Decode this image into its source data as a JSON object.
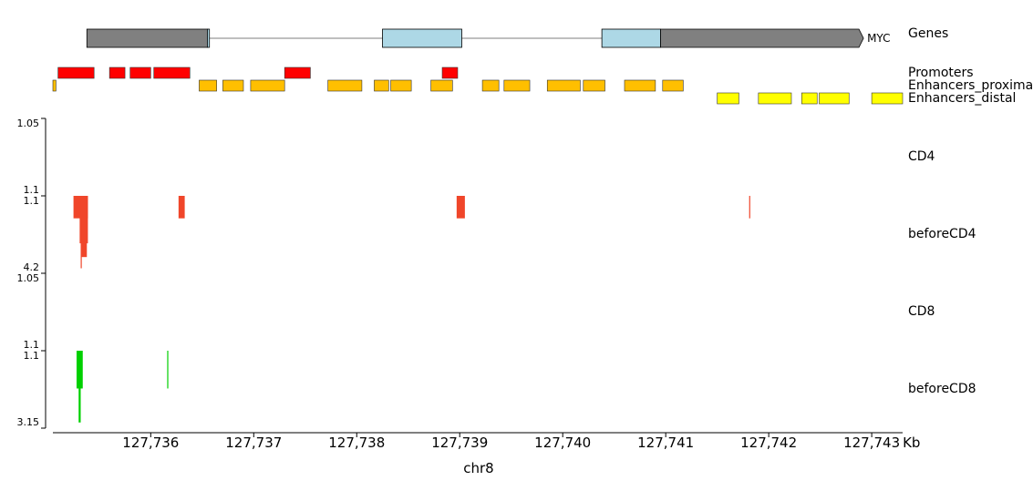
{
  "chart_data": {
    "type": "genome-browser",
    "x_unit": "Kb",
    "x_range_kb": [
      127735.05,
      127743.3
    ],
    "xticks_kb": [
      127736,
      127737,
      127738,
      127739,
      127740,
      127741,
      127742,
      127743
    ],
    "xtick_labels": [
      "127,736",
      "127,737",
      "127,738",
      "127,739",
      "127,740",
      "127,741",
      "127,742",
      "127,743"
    ],
    "x_unit_label": "Kb",
    "xlabel": "chr8",
    "colors": {
      "gene_noncoding": "#808080",
      "gene_exon": "#add8e6",
      "promoter": "#ff0000",
      "enhancer_proximal": "#ffbf00",
      "enhancer_distal": "#ffff00",
      "cd4_signal": "#f0462a",
      "cd8_signal": "#00d000"
    },
    "tracks": {
      "genes": {
        "label": "Genes",
        "gene_name": "MYC",
        "strand": "+",
        "intron_span": [
          127735.65,
          127742.92
        ],
        "exons": [
          {
            "start": 127735.38,
            "end": 127736.55,
            "kind": "utr"
          },
          {
            "start": 127736.55,
            "end": 127736.57,
            "kind": "cds"
          },
          {
            "start": 127738.25,
            "end": 127739.02,
            "kind": "cds"
          },
          {
            "start": 127740.38,
            "end": 127740.95,
            "kind": "cds"
          },
          {
            "start": 127740.95,
            "end": 127742.92,
            "kind": "utr"
          }
        ]
      },
      "promoters": {
        "label": "Promoters",
        "regions": [
          [
            127735.1,
            127735.45
          ],
          [
            127735.6,
            127735.75
          ],
          [
            127735.8,
            127736.0
          ],
          [
            127736.03,
            127736.38
          ],
          [
            127737.3,
            127737.55
          ],
          [
            127738.83,
            127738.98
          ]
        ]
      },
      "enhancers_proximal": {
        "label": "Enhancers_proximal",
        "regions": [
          [
            127735.0,
            127735.08
          ],
          [
            127736.47,
            127736.64
          ],
          [
            127736.7,
            127736.9
          ],
          [
            127736.97,
            127737.3
          ],
          [
            127737.72,
            127738.05
          ],
          [
            127738.17,
            127738.31
          ],
          [
            127738.33,
            127738.53
          ],
          [
            127738.72,
            127738.93
          ],
          [
            127739.22,
            127739.38
          ],
          [
            127739.43,
            127739.68
          ],
          [
            127739.85,
            127740.17
          ],
          [
            127740.2,
            127740.41
          ],
          [
            127740.6,
            127740.9
          ],
          [
            127740.97,
            127741.17
          ]
        ]
      },
      "enhancers_distal": {
        "label": "Enhancers_distal",
        "regions": [
          [
            127741.5,
            127741.71
          ],
          [
            127741.9,
            127742.22
          ],
          [
            127742.32,
            127742.47
          ],
          [
            127742.49,
            127742.78
          ],
          [
            127743.0,
            127743.34
          ]
        ]
      },
      "cd4": {
        "label": "CD4",
        "ytick_labels": [
          "1.05",
          "1.1"
        ],
        "ylim": [
          1.05,
          1.1
        ],
        "bars": []
      },
      "before_cd4": {
        "label": "beforeCD4",
        "ytick_labels": [
          "1.1",
          "4.2"
        ],
        "ylim": [
          1.1,
          4.2
        ],
        "bars": [
          {
            "start": 127735.25,
            "end": 127735.39,
            "value": 2.0
          },
          {
            "start": 127735.31,
            "end": 127735.39,
            "value": 3.0
          },
          {
            "start": 127735.32,
            "end": 127735.38,
            "value": 3.55
          },
          {
            "start": 127735.32,
            "end": 127735.33,
            "value": 4.0
          },
          {
            "start": 127736.27,
            "end": 127736.33,
            "value": 2.0
          },
          {
            "start": 127738.97,
            "end": 127739.05,
            "value": 2.0
          },
          {
            "start": 127741.81,
            "end": 127741.82,
            "value": 2.0
          }
        ]
      },
      "cd8": {
        "label": "CD8",
        "ytick_labels": [
          "1.05",
          "1.1"
        ],
        "ylim": [
          1.05,
          1.1
        ],
        "bars": []
      },
      "before_cd8": {
        "label": "beforeCD8",
        "ytick_labels": [
          "1.1",
          "3.15"
        ],
        "ylim": [
          1.1,
          3.15
        ],
        "bars": [
          {
            "start": 127735.28,
            "end": 127735.34,
            "value": 2.1
          },
          {
            "start": 127735.3,
            "end": 127735.32,
            "value": 3.0
          },
          {
            "start": 127736.16,
            "end": 127736.17,
            "value": 2.1
          }
        ]
      }
    }
  }
}
